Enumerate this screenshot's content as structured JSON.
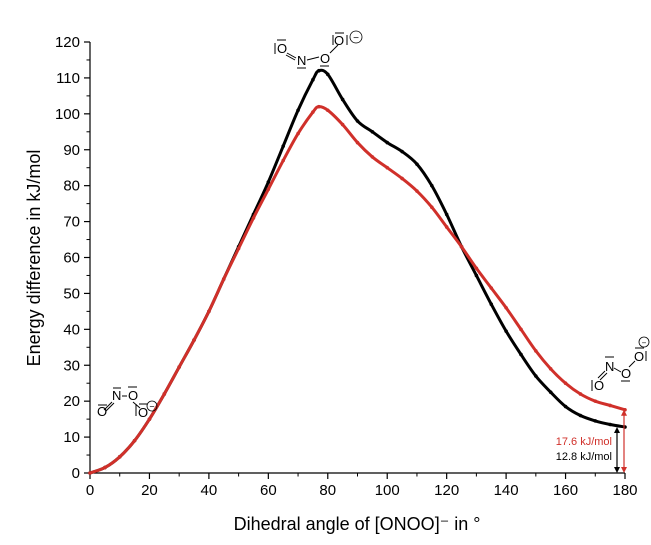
{
  "chart_data": {
    "type": "line",
    "title": "",
    "xlabel": "Dihedral angle of [ONOO]⁻ in °",
    "ylabel": "Energy difference in kJ/mol",
    "xlim": [
      0,
      180
    ],
    "ylim": [
      0,
      120
    ],
    "xticks": [
      0,
      20,
      40,
      60,
      80,
      100,
      120,
      140,
      160,
      180
    ],
    "yticks": [
      0,
      10,
      20,
      30,
      40,
      50,
      60,
      70,
      80,
      90,
      100,
      110,
      120
    ],
    "grid": false,
    "legend": "none",
    "series": [
      {
        "color": "#000000",
        "x": [
          0,
          5,
          10,
          15,
          20,
          25,
          30,
          35,
          40,
          45,
          50,
          55,
          60,
          65,
          70,
          75,
          77,
          80,
          85,
          90,
          95,
          100,
          105,
          110,
          115,
          120,
          125,
          130,
          135,
          140,
          145,
          150,
          155,
          160,
          165,
          170,
          175,
          180
        ],
        "y": [
          0,
          1.5,
          4.5,
          9,
          15,
          22,
          29.5,
          37,
          45,
          54,
          63,
          72,
          81,
          91,
          101,
          109.5,
          112,
          111,
          104,
          98,
          95,
          92,
          89.5,
          86,
          80,
          72,
          63,
          55,
          47,
          39.5,
          33,
          27,
          22.5,
          18.5,
          16,
          14.5,
          13.5,
          12.8
        ]
      },
      {
        "color": "#d0302a",
        "x": [
          0,
          5,
          10,
          15,
          20,
          25,
          30,
          35,
          40,
          45,
          50,
          55,
          60,
          65,
          70,
          75,
          77,
          80,
          85,
          90,
          95,
          100,
          105,
          110,
          115,
          120,
          125,
          130,
          135,
          140,
          145,
          150,
          155,
          160,
          165,
          170,
          175,
          180
        ],
        "y": [
          0,
          1.5,
          4.5,
          9,
          15,
          22,
          29.5,
          37,
          45,
          54,
          62.5,
          71,
          79,
          87,
          94.5,
          100.5,
          102,
          101,
          97,
          92,
          88,
          85,
          82,
          78.5,
          74,
          68.5,
          63,
          57,
          51.5,
          46,
          40,
          34,
          29,
          25,
          22,
          20,
          18.8,
          17.6
        ]
      }
    ],
    "annotations": [
      {
        "text": "17.6 kJ/mol",
        "color": "#d0302a"
      },
      {
        "text": "12.8 kJ/mol",
        "color": "#000000"
      }
    ],
    "structures": {
      "left": {
        "o1": "O",
        "n": "N",
        "o2": "O",
        "o3": "O",
        "charge": "−"
      },
      "top": {
        "o1": "O",
        "n": "N",
        "o2": "O",
        "o3": "O",
        "charge": "−"
      },
      "right": {
        "o1": "O",
        "n": "N",
        "o2": "O",
        "o3": "O",
        "charge": "−"
      }
    }
  }
}
